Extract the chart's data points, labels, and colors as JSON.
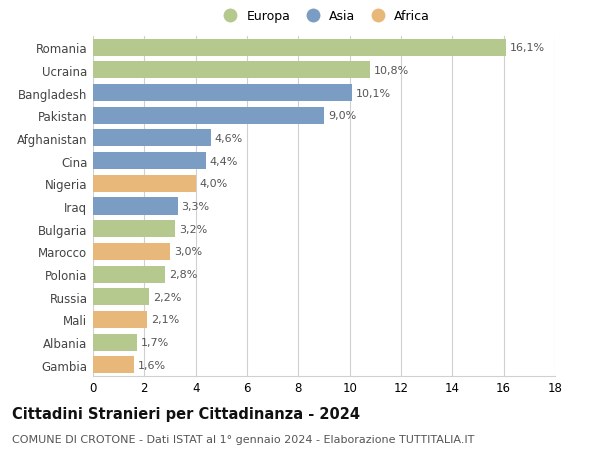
{
  "categories": [
    "Romania",
    "Ucraina",
    "Bangladesh",
    "Pakistan",
    "Afghanistan",
    "Cina",
    "Nigeria",
    "Iraq",
    "Bulgaria",
    "Marocco",
    "Polonia",
    "Russia",
    "Mali",
    "Albania",
    "Gambia"
  ],
  "values": [
    16.1,
    10.8,
    10.1,
    9.0,
    4.6,
    4.4,
    4.0,
    3.3,
    3.2,
    3.0,
    2.8,
    2.2,
    2.1,
    1.7,
    1.6
  ],
  "labels": [
    "16,1%",
    "10,8%",
    "10,1%",
    "9,0%",
    "4,6%",
    "4,4%",
    "4,0%",
    "3,3%",
    "3,2%",
    "3,0%",
    "2,8%",
    "2,2%",
    "2,1%",
    "1,7%",
    "1,6%"
  ],
  "continents": [
    "Europa",
    "Europa",
    "Asia",
    "Asia",
    "Asia",
    "Asia",
    "Africa",
    "Asia",
    "Europa",
    "Africa",
    "Europa",
    "Europa",
    "Africa",
    "Europa",
    "Africa"
  ],
  "colors": {
    "Europa": "#b5c98e",
    "Asia": "#7b9dc4",
    "Africa": "#e8b87a"
  },
  "legend_labels": [
    "Europa",
    "Asia",
    "Africa"
  ],
  "xlim": [
    0,
    18
  ],
  "xticks": [
    0,
    2,
    4,
    6,
    8,
    10,
    12,
    14,
    16,
    18
  ],
  "title": "Cittadini Stranieri per Cittadinanza - 2024",
  "subtitle": "COMUNE DI CROTONE - Dati ISTAT al 1° gennaio 2024 - Elaborazione TUTTITALIA.IT",
  "bg_color": "#ffffff",
  "grid_color": "#d0d0d0",
  "bar_height": 0.75,
  "label_fontsize": 8,
  "ylabel_fontsize": 8.5,
  "xlabel_fontsize": 8.5,
  "title_fontsize": 10.5,
  "subtitle_fontsize": 8
}
